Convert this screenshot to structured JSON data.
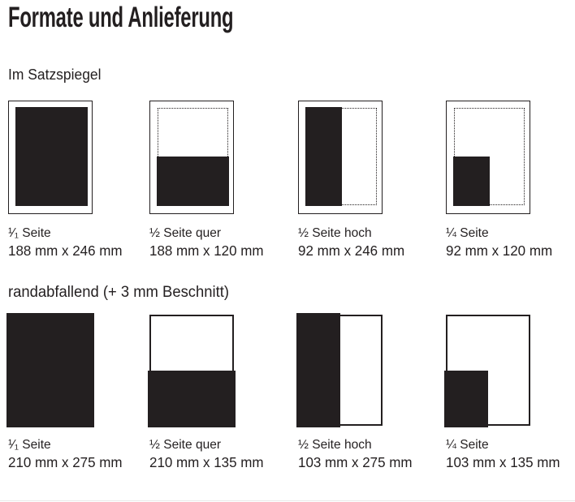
{
  "page": {
    "title": "Formate und Anlieferung",
    "background": "#ffffff",
    "ink_color": "#231f20"
  },
  "sections": [
    {
      "heading": "Im Satzspiegel",
      "style": "satzspiegel",
      "formats": [
        {
          "name": "¹⁄₁ Seite",
          "dimensions": "188 mm x 246 mm",
          "coverage": "full"
        },
        {
          "name": "½ Seite quer",
          "dimensions": "188 mm x 120 mm",
          "coverage": "half-horizontal-bottom"
        },
        {
          "name": "½ Seite hoch",
          "dimensions": "92 mm x 246 mm",
          "coverage": "half-vertical-left"
        },
        {
          "name": "¼ Seite",
          "dimensions": "92 mm x 120 mm",
          "coverage": "quarter-bottom-left"
        }
      ]
    },
    {
      "heading": "randabfallend (+ 3 mm Beschnitt)",
      "style": "bleed",
      "formats": [
        {
          "name": "¹⁄₁ Seite",
          "dimensions": "210 mm x 275 mm",
          "coverage": "full"
        },
        {
          "name": "½ Seite quer",
          "dimensions": "210 mm x 135 mm",
          "coverage": "half-horizontal-bottom"
        },
        {
          "name": "½ Seite hoch",
          "dimensions": "103 mm x 275 mm",
          "coverage": "half-vertical-left"
        },
        {
          "name": "¼ Seite",
          "dimensions": "103 mm x 135 mm",
          "coverage": "quarter-bottom-left"
        }
      ]
    }
  ]
}
